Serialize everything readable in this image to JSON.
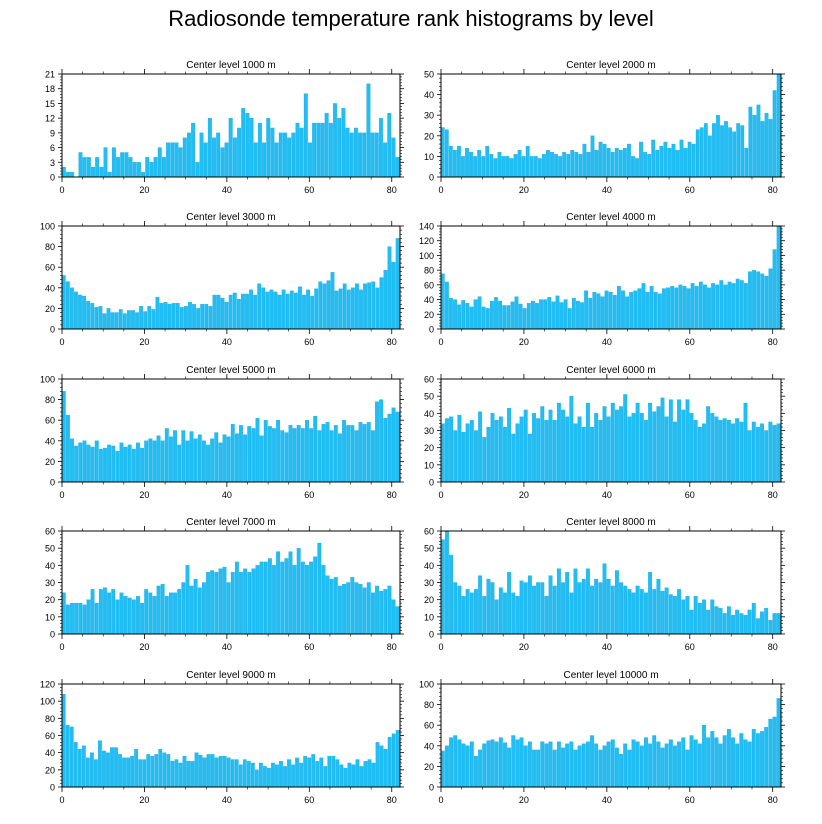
{
  "title": "Radiosonde temperature rank histograms by level",
  "colors": {
    "bar": "#1fbff5",
    "bar_stroke": "#0e9fd8",
    "axis": "#000000"
  },
  "chart_data": [
    {
      "type": "bar",
      "title": "Center level 1000 m",
      "xlim": [
        0,
        82
      ],
      "ylim": [
        0,
        21
      ],
      "xticks": [
        0,
        20,
        40,
        60,
        80
      ],
      "yticks": [
        0,
        3,
        6,
        9,
        12,
        15,
        18,
        21
      ],
      "values": [
        2,
        1,
        1,
        0,
        5,
        4,
        4,
        2,
        4,
        2,
        6,
        1,
        6,
        4,
        5,
        5,
        4,
        3,
        3,
        1,
        4,
        3,
        4,
        6,
        4,
        7,
        7,
        7,
        6,
        8,
        9,
        11,
        3,
        9,
        7,
        12,
        8,
        9,
        6,
        7,
        12,
        8,
        10,
        14,
        13,
        12,
        7,
        11,
        7,
        12,
        10,
        7,
        9,
        9,
        8,
        9,
        11,
        10,
        17,
        7,
        11,
        11,
        11,
        13,
        11,
        15,
        12,
        14,
        10,
        9,
        10,
        9,
        9,
        19,
        9,
        9,
        12,
        7,
        13,
        8,
        4
      ]
    },
    {
      "type": "bar",
      "title": "Center level 2000 m",
      "xlim": [
        0,
        82
      ],
      "ylim": [
        0,
        50
      ],
      "xticks": [
        0,
        20,
        40,
        60,
        80
      ],
      "yticks": [
        0,
        10,
        20,
        30,
        40,
        50
      ],
      "values": [
        24,
        23,
        15,
        13,
        15,
        10,
        14,
        12,
        10,
        13,
        10,
        15,
        11,
        9,
        12,
        10,
        10,
        9,
        11,
        13,
        10,
        15,
        10,
        10,
        9,
        11,
        13,
        12,
        11,
        10,
        12,
        11,
        13,
        12,
        11,
        16,
        12,
        20,
        13,
        17,
        16,
        14,
        12,
        14,
        13,
        14,
        16,
        10,
        9,
        17,
        12,
        11,
        18,
        13,
        15,
        17,
        14,
        16,
        13,
        18,
        14,
        17,
        16,
        23,
        24,
        26,
        20,
        26,
        30,
        25,
        27,
        24,
        22,
        26,
        25,
        14,
        34,
        30,
        35,
        27,
        31,
        28,
        42,
        50
      ]
    },
    {
      "type": "bar",
      "title": "Center level 3000 m",
      "xlim": [
        0,
        82
      ],
      "ylim": [
        0,
        100
      ],
      "xticks": [
        0,
        20,
        40,
        60,
        80
      ],
      "yticks": [
        0,
        20,
        40,
        60,
        80,
        100
      ],
      "values": [
        52,
        46,
        40,
        36,
        33,
        32,
        27,
        25,
        21,
        22,
        15,
        20,
        16,
        16,
        19,
        15,
        18,
        18,
        16,
        22,
        17,
        22,
        19,
        31,
        25,
        26,
        24,
        25,
        25,
        21,
        22,
        26,
        24,
        20,
        24,
        24,
        22,
        33,
        33,
        30,
        26,
        33,
        35,
        29,
        34,
        34,
        38,
        33,
        44,
        40,
        36,
        38,
        36,
        33,
        38,
        34,
        37,
        35,
        41,
        33,
        38,
        32,
        39,
        46,
        44,
        47,
        55,
        37,
        39,
        44,
        38,
        40,
        44,
        38,
        44,
        45,
        46,
        40,
        50,
        57,
        80,
        65,
        88
      ]
    },
    {
      "type": "bar",
      "title": "Center level 4000 m",
      "xlim": [
        0,
        82
      ],
      "ylim": [
        0,
        140
      ],
      "xticks": [
        0,
        20,
        40,
        60,
        80
      ],
      "yticks": [
        0,
        20,
        40,
        60,
        80,
        100,
        120,
        140
      ],
      "values": [
        75,
        64,
        42,
        40,
        33,
        39,
        35,
        30,
        40,
        44,
        30,
        28,
        38,
        43,
        38,
        32,
        32,
        37,
        44,
        34,
        28,
        35,
        38,
        35,
        40,
        40,
        43,
        37,
        45,
        36,
        40,
        28,
        42,
        38,
        36,
        52,
        42,
        50,
        48,
        44,
        52,
        50,
        46,
        58,
        52,
        44,
        50,
        52,
        55,
        62,
        50,
        58,
        50,
        48,
        55,
        56,
        58,
        56,
        60,
        58,
        55,
        62,
        58,
        64,
        60,
        56,
        62,
        60,
        66,
        60,
        64,
        62,
        68,
        66,
        62,
        78,
        80,
        78,
        75,
        72,
        82,
        108,
        140
      ]
    },
    {
      "type": "bar",
      "title": "Center level 5000 m",
      "xlim": [
        0,
        82
      ],
      "ylim": [
        0,
        100
      ],
      "xticks": [
        0,
        20,
        40,
        60,
        80
      ],
      "yticks": [
        0,
        20,
        40,
        60,
        80,
        100
      ],
      "values": [
        88,
        65,
        42,
        35,
        38,
        40,
        36,
        34,
        40,
        32,
        33,
        36,
        35,
        30,
        38,
        34,
        36,
        32,
        38,
        33,
        40,
        42,
        40,
        45,
        40,
        52,
        44,
        50,
        36,
        50,
        40,
        49,
        42,
        46,
        40,
        36,
        42,
        48,
        38,
        46,
        44,
        56,
        47,
        55,
        46,
        54,
        52,
        62,
        45,
        60,
        54,
        52,
        60,
        50,
        48,
        55,
        52,
        55,
        52,
        60,
        52,
        64,
        50,
        56,
        58,
        50,
        55,
        47,
        60,
        55,
        55,
        50,
        58,
        56,
        58,
        50,
        78,
        80,
        62,
        66,
        72,
        68
      ]
    },
    {
      "type": "bar",
      "title": "Center level 6000 m",
      "xlim": [
        0,
        82
      ],
      "ylim": [
        0,
        60
      ],
      "xticks": [
        0,
        20,
        40,
        60,
        80
      ],
      "yticks": [
        0,
        10,
        20,
        30,
        40,
        50,
        60
      ],
      "values": [
        34,
        37,
        38,
        30,
        39,
        29,
        34,
        36,
        30,
        41,
        26,
        32,
        40,
        36,
        38,
        32,
        43,
        28,
        34,
        38,
        42,
        28,
        40,
        37,
        44,
        36,
        42,
        36,
        46,
        42,
        38,
        50,
        34,
        38,
        32,
        46,
        32,
        40,
        36,
        44,
        38,
        46,
        42,
        44,
        51,
        38,
        40,
        46,
        40,
        36,
        46,
        41,
        44,
        49,
        38,
        48,
        35,
        48,
        42,
        48,
        40,
        36,
        32,
        34,
        44,
        40,
        38,
        36,
        37,
        36,
        34,
        37,
        35,
        46,
        30,
        35,
        32,
        34,
        30,
        35,
        33,
        34
      ]
    },
    {
      "type": "bar",
      "title": "Center level 7000 m",
      "xlim": [
        0,
        82
      ],
      "ylim": [
        0,
        60
      ],
      "xticks": [
        0,
        20,
        40,
        60,
        80
      ],
      "yticks": [
        0,
        10,
        20,
        30,
        40,
        50,
        60
      ],
      "values": [
        24,
        17,
        18,
        18,
        18,
        17,
        20,
        26,
        18,
        26,
        27,
        24,
        26,
        20,
        24,
        22,
        21,
        20,
        22,
        18,
        26,
        24,
        22,
        28,
        29,
        22,
        24,
        24,
        26,
        30,
        40,
        28,
        32,
        27,
        30,
        36,
        37,
        36,
        38,
        39,
        30,
        36,
        42,
        36,
        38,
        36,
        38,
        40,
        42,
        42,
        44,
        40,
        48,
        42,
        44,
        48,
        40,
        50,
        42,
        40,
        42,
        45,
        53,
        40,
        34,
        32,
        33,
        28,
        29,
        30,
        33,
        30,
        29,
        27,
        30,
        24,
        28,
        25,
        26,
        28,
        20,
        16
      ]
    },
    {
      "type": "bar",
      "title": "Center level 8000 m",
      "xlim": [
        0,
        82
      ],
      "ylim": [
        0,
        60
      ],
      "xticks": [
        0,
        20,
        40,
        60,
        80
      ],
      "yticks": [
        0,
        10,
        20,
        30,
        40,
        50,
        60
      ],
      "values": [
        55,
        60,
        46,
        30,
        28,
        22,
        26,
        24,
        26,
        34,
        22,
        32,
        30,
        20,
        27,
        24,
        36,
        24,
        22,
        31,
        30,
        34,
        28,
        30,
        30,
        22,
        34,
        28,
        38,
        30,
        36,
        24,
        38,
        30,
        32,
        38,
        28,
        32,
        30,
        41,
        32,
        28,
        37,
        30,
        28,
        26,
        24,
        28,
        26,
        24,
        36,
        26,
        32,
        25,
        27,
        23,
        22,
        26,
        20,
        22,
        14,
        22,
        18,
        20,
        14,
        20,
        16,
        15,
        12,
        16,
        11,
        14,
        12,
        11,
        14,
        18,
        9,
        13,
        15,
        8,
        12,
        12
      ]
    },
    {
      "type": "bar",
      "title": "Center level 9000 m",
      "xlim": [
        0,
        82
      ],
      "ylim": [
        0,
        120
      ],
      "xticks": [
        0,
        20,
        40,
        60,
        80
      ],
      "yticks": [
        0,
        20,
        40,
        60,
        80,
        100,
        120
      ],
      "values": [
        108,
        72,
        70,
        52,
        44,
        48,
        34,
        40,
        32,
        54,
        42,
        40,
        46,
        46,
        38,
        34,
        34,
        36,
        44,
        32,
        32,
        38,
        36,
        38,
        44,
        40,
        38,
        30,
        32,
        28,
        36,
        30,
        30,
        40,
        37,
        34,
        38,
        38,
        34,
        36,
        36,
        34,
        32,
        32,
        26,
        32,
        30,
        28,
        20,
        28,
        24,
        22,
        28,
        26,
        30,
        24,
        32,
        26,
        34,
        28,
        36,
        34,
        38,
        30,
        34,
        24,
        36,
        36,
        32,
        26,
        22,
        28,
        26,
        32,
        24,
        30,
        32,
        28,
        52,
        48,
        44,
        58,
        62,
        66
      ]
    },
    {
      "type": "bar",
      "title": "Center level 10000 m",
      "xlim": [
        0,
        82
      ],
      "ylim": [
        0,
        100
      ],
      "xticks": [
        0,
        20,
        40,
        60,
        80
      ],
      "yticks": [
        0,
        20,
        40,
        60,
        80,
        100
      ],
      "values": [
        35,
        40,
        48,
        50,
        46,
        42,
        40,
        44,
        30,
        36,
        42,
        45,
        46,
        44,
        48,
        43,
        38,
        50,
        46,
        48,
        40,
        44,
        36,
        36,
        44,
        42,
        44,
        36,
        44,
        38,
        42,
        44,
        36,
        40,
        42,
        44,
        50,
        42,
        36,
        40,
        44,
        46,
        38,
        32,
        42,
        36,
        46,
        44,
        40,
        48,
        42,
        50,
        44,
        38,
        42,
        46,
        40,
        44,
        48,
        36,
        50,
        46,
        42,
        60,
        48,
        54,
        48,
        42,
        50,
        56,
        48,
        42,
        52,
        46,
        44,
        56,
        52,
        54,
        58,
        66,
        68,
        86
      ]
    }
  ]
}
